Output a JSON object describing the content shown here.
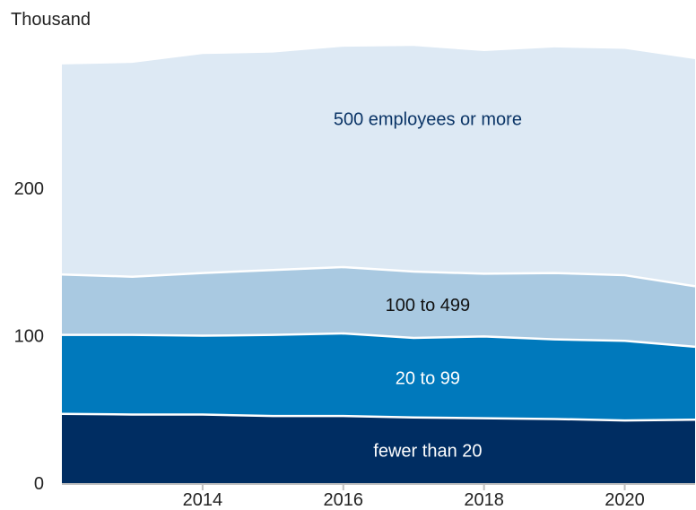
{
  "chart_data": {
    "type": "area",
    "stacked": true,
    "unit_label": "Thousand",
    "x": [
      2012,
      2013,
      2014,
      2015,
      2016,
      2017,
      2018,
      2019,
      2020,
      2021
    ],
    "x_tick_values": [
      2014,
      2016,
      2018,
      2020
    ],
    "x_tick_labels": [
      "2014",
      "2016",
      "2018",
      "2020"
    ],
    "y_tick_values": [
      0,
      100,
      200
    ],
    "y_tick_labels": [
      "0",
      "100",
      "200"
    ],
    "xlim": [
      2012,
      2021
    ],
    "ylim": [
      0,
      300
    ],
    "grid": false,
    "legend": "inline labels",
    "series": [
      {
        "name": "fewer than 20",
        "values": [
          47,
          46.5,
          46.5,
          45.5,
          45.5,
          44.5,
          44,
          43.5,
          42.5,
          43
        ],
        "color": "#002d62",
        "label_color": "#ffffff"
      },
      {
        "name": "20 to 99",
        "values": [
          53.5,
          54,
          53.5,
          55,
          56,
          54,
          55.5,
          54,
          54,
          49.5
        ],
        "color": "#0079bc",
        "label_color": "#ffffff"
      },
      {
        "name": "100 to 499",
        "values": [
          41,
          39.5,
          42.5,
          44,
          45,
          45,
          42.5,
          45,
          44.5,
          41
        ],
        "color": "#a9c9e1",
        "label_color": "#111111"
      },
      {
        "name": "500 employees or more",
        "values": [
          142.5,
          145,
          148.5,
          147.5,
          149.5,
          153,
          151,
          153,
          153.5,
          154
        ],
        "color": "#dde9f4",
        "label_color": "#0a3466"
      }
    ]
  }
}
